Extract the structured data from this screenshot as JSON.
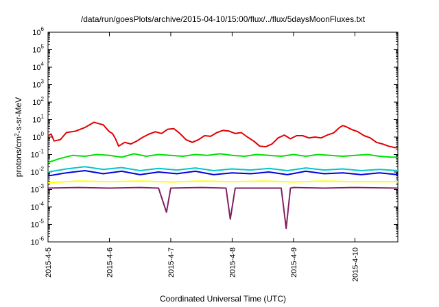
{
  "chart_data": {
    "type": "line",
    "title": "/data/run/goesPlots/archive/2015-04-10/15:00/flux/../flux/5daysMoonFluxes.txt",
    "xlabel": "Coordinated Universal Time (UTC)",
    "ylabel": {
      "prefix": "protons/cm",
      "sup": "2",
      "suffix": "-s-sr-MeV"
    },
    "y_scale": "log",
    "ylim": [
      1e-06,
      1000000.0
    ],
    "y_ticks": [
      {
        "value": 1000000.0,
        "base": "10",
        "exp": "6"
      },
      {
        "value": 100000.0,
        "base": "10",
        "exp": "5"
      },
      {
        "value": 10000.0,
        "base": "10",
        "exp": "4"
      },
      {
        "value": 1000.0,
        "base": "10",
        "exp": "3"
      },
      {
        "value": 100.0,
        "base": "10",
        "exp": "2"
      },
      {
        "value": 10.0,
        "base": "10",
        "exp": "1"
      },
      {
        "value": 1,
        "base": "10",
        "exp": "0"
      },
      {
        "value": 0.1,
        "base": "10",
        "exp": "-1"
      },
      {
        "value": 0.01,
        "base": "10",
        "exp": "-2"
      },
      {
        "value": 0.001,
        "base": "10",
        "exp": "-3"
      },
      {
        "value": 0.0001,
        "base": "10",
        "exp": "-4"
      },
      {
        "value": 1e-05,
        "base": "10",
        "exp": "-5"
      },
      {
        "value": 1e-06,
        "base": "10",
        "exp": "-6"
      }
    ],
    "x_ticks": [
      {
        "value": 0,
        "label": "2015-4-5"
      },
      {
        "value": 1,
        "label": "2015-4-6"
      },
      {
        "value": 2,
        "label": "2015-4-7"
      },
      {
        "value": 3,
        "label": "2015-4-8"
      },
      {
        "value": 4,
        "label": "2015-4-9"
      },
      {
        "value": 5,
        "label": "2015-4-10"
      }
    ],
    "xlim": [
      0,
      5.7
    ],
    "grid": false,
    "legend": "none",
    "series": [
      {
        "color": "#e00000",
        "points": [
          [
            0,
            1.2
          ],
          [
            0.05,
            1.5
          ],
          [
            0.1,
            0.6
          ],
          [
            0.2,
            0.7
          ],
          [
            0.3,
            1.8
          ],
          [
            0.45,
            2.2
          ],
          [
            0.6,
            3.5
          ],
          [
            0.75,
            7
          ],
          [
            0.9,
            5
          ],
          [
            1,
            2
          ],
          [
            1.05,
            1.6
          ],
          [
            1.1,
            0.8
          ],
          [
            1.15,
            0.3
          ],
          [
            1.25,
            0.5
          ],
          [
            1.35,
            0.4
          ],
          [
            1.45,
            0.6
          ],
          [
            1.55,
            1.0
          ],
          [
            1.65,
            1.5
          ],
          [
            1.75,
            2.0
          ],
          [
            1.85,
            1.6
          ],
          [
            1.95,
            2.8
          ],
          [
            2.05,
            3.0
          ],
          [
            2.15,
            1.6
          ],
          [
            2.25,
            0.7
          ],
          [
            2.35,
            0.5
          ],
          [
            2.45,
            0.7
          ],
          [
            2.55,
            1.2
          ],
          [
            2.65,
            1.1
          ],
          [
            2.75,
            1.8
          ],
          [
            2.85,
            2.4
          ],
          [
            2.95,
            2.2
          ],
          [
            3.05,
            1.6
          ],
          [
            3.15,
            1.8
          ],
          [
            3.25,
            1.0
          ],
          [
            3.35,
            0.6
          ],
          [
            3.45,
            0.3
          ],
          [
            3.55,
            0.28
          ],
          [
            3.65,
            0.4
          ],
          [
            3.75,
            0.9
          ],
          [
            3.85,
            1.3
          ],
          [
            3.95,
            0.8
          ],
          [
            4.05,
            1.2
          ],
          [
            4.15,
            1.2
          ],
          [
            4.25,
            0.9
          ],
          [
            4.35,
            1.0
          ],
          [
            4.45,
            0.9
          ],
          [
            4.55,
            1.3
          ],
          [
            4.65,
            1.7
          ],
          [
            4.75,
            3.5
          ],
          [
            4.8,
            4.5
          ],
          [
            4.85,
            4.0
          ],
          [
            4.95,
            2.7
          ],
          [
            5.05,
            2.0
          ],
          [
            5.15,
            1.2
          ],
          [
            5.25,
            0.9
          ],
          [
            5.35,
            0.5
          ],
          [
            5.45,
            0.4
          ],
          [
            5.55,
            0.3
          ],
          [
            5.65,
            0.25
          ],
          [
            5.7,
            0.25
          ]
        ]
      },
      {
        "color": "#00e000",
        "points": [
          [
            0,
            0.035
          ],
          [
            0.2,
            0.06
          ],
          [
            0.4,
            0.09
          ],
          [
            0.6,
            0.08
          ],
          [
            0.8,
            0.1
          ],
          [
            1.0,
            0.09
          ],
          [
            1.2,
            0.07
          ],
          [
            1.4,
            0.11
          ],
          [
            1.6,
            0.08
          ],
          [
            1.8,
            0.1
          ],
          [
            2.0,
            0.09
          ],
          [
            2.2,
            0.08
          ],
          [
            2.4,
            0.1
          ],
          [
            2.6,
            0.09
          ],
          [
            2.8,
            0.11
          ],
          [
            3.0,
            0.09
          ],
          [
            3.2,
            0.08
          ],
          [
            3.4,
            0.1
          ],
          [
            3.6,
            0.09
          ],
          [
            3.8,
            0.08
          ],
          [
            4.0,
            0.1
          ],
          [
            4.2,
            0.08
          ],
          [
            4.4,
            0.1
          ],
          [
            4.6,
            0.09
          ],
          [
            4.8,
            0.08
          ],
          [
            5.0,
            0.09
          ],
          [
            5.2,
            0.1
          ],
          [
            5.4,
            0.08
          ],
          [
            5.6,
            0.07
          ],
          [
            5.7,
            0.07
          ]
        ]
      },
      {
        "color": "#00c8c8",
        "points": [
          [
            0,
            0.01
          ],
          [
            0.3,
            0.015
          ],
          [
            0.6,
            0.02
          ],
          [
            0.9,
            0.014
          ],
          [
            1.2,
            0.018
          ],
          [
            1.5,
            0.012
          ],
          [
            1.8,
            0.016
          ],
          [
            2.1,
            0.013
          ],
          [
            2.4,
            0.017
          ],
          [
            2.7,
            0.012
          ],
          [
            3.0,
            0.015
          ],
          [
            3.3,
            0.013
          ],
          [
            3.6,
            0.016
          ],
          [
            3.9,
            0.012
          ],
          [
            4.2,
            0.017
          ],
          [
            4.5,
            0.013
          ],
          [
            4.8,
            0.015
          ],
          [
            5.1,
            0.012
          ],
          [
            5.4,
            0.014
          ],
          [
            5.7,
            0.012
          ]
        ]
      },
      {
        "color": "#0000e0",
        "points": [
          [
            0,
            0.006
          ],
          [
            0.3,
            0.009
          ],
          [
            0.6,
            0.012
          ],
          [
            0.9,
            0.008
          ],
          [
            1.2,
            0.011
          ],
          [
            1.5,
            0.007
          ],
          [
            1.8,
            0.01
          ],
          [
            2.1,
            0.008
          ],
          [
            2.4,
            0.011
          ],
          [
            2.7,
            0.007
          ],
          [
            3.0,
            0.009
          ],
          [
            3.3,
            0.008
          ],
          [
            3.6,
            0.01
          ],
          [
            3.9,
            0.007
          ],
          [
            4.2,
            0.011
          ],
          [
            4.5,
            0.008
          ],
          [
            4.8,
            0.009
          ],
          [
            5.1,
            0.007
          ],
          [
            5.4,
            0.009
          ],
          [
            5.7,
            0.007
          ]
        ]
      },
      {
        "color": "#ffff00",
        "points": [
          [
            0,
            0.0025
          ],
          [
            0.5,
            0.003
          ],
          [
            1.0,
            0.0028
          ],
          [
            1.5,
            0.003
          ],
          [
            2.0,
            0.0027
          ],
          [
            2.5,
            0.003
          ],
          [
            3.0,
            0.0028
          ],
          [
            3.5,
            0.003
          ],
          [
            4.0,
            0.0027
          ],
          [
            4.5,
            0.003
          ],
          [
            5.0,
            0.0028
          ],
          [
            5.7,
            0.0028
          ]
        ]
      },
      {
        "color": "#802060",
        "points": [
          [
            0,
            0.0012
          ],
          [
            0.5,
            0.0013
          ],
          [
            1.0,
            0.0012
          ],
          [
            1.5,
            0.0013
          ],
          [
            1.8,
            0.0012
          ],
          [
            1.93,
            5e-05
          ],
          [
            2.0,
            0.0012
          ],
          [
            2.5,
            0.0013
          ],
          [
            2.9,
            0.0012
          ],
          [
            2.97,
            2e-05
          ],
          [
            3.05,
            0.0012
          ],
          [
            3.5,
            0.0012
          ],
          [
            3.8,
            0.0012
          ],
          [
            3.88,
            6e-06
          ],
          [
            3.95,
            0.0012
          ],
          [
            4.0,
            0.0013
          ],
          [
            4.5,
            0.0012
          ],
          [
            5.0,
            0.0013
          ],
          [
            5.7,
            0.0012
          ]
        ]
      }
    ]
  }
}
